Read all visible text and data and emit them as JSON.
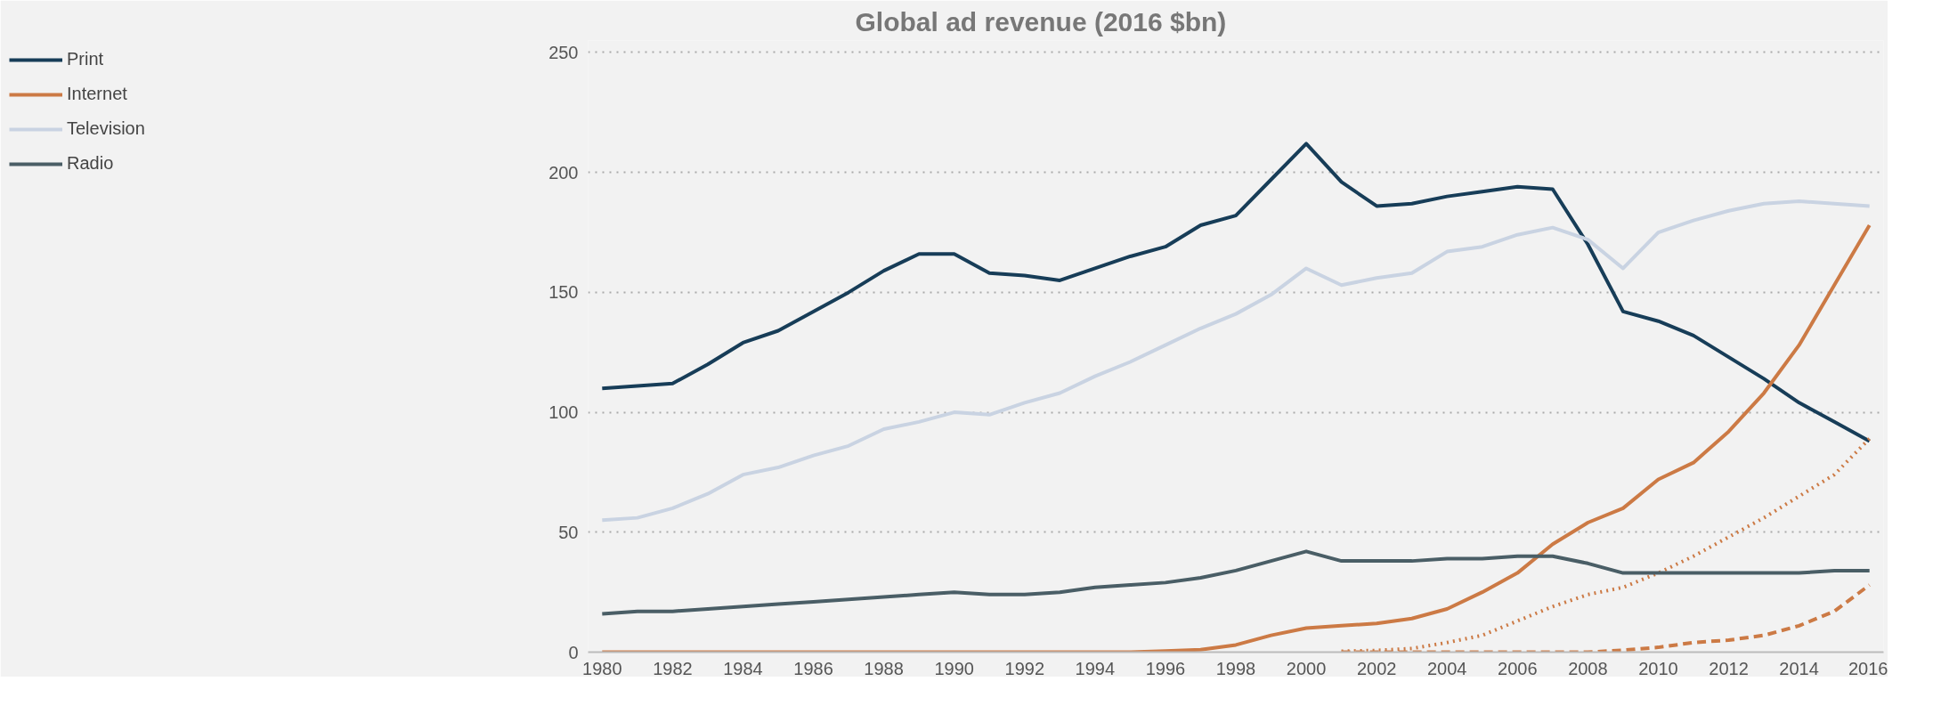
{
  "chart_data": {
    "type": "line",
    "title": "Global ad revenue (2016 $bn)",
    "x": [
      1980,
      1981,
      1982,
      1983,
      1984,
      1985,
      1986,
      1987,
      1988,
      1989,
      1990,
      1991,
      1992,
      1993,
      1994,
      1995,
      1996,
      1997,
      1998,
      1999,
      2000,
      2001,
      2002,
      2003,
      2004,
      2005,
      2006,
      2007,
      2008,
      2009,
      2010,
      2011,
      2012,
      2013,
      2014,
      2015,
      2016
    ],
    "series": [
      {
        "name": "Print",
        "color": "#173d58",
        "values": [
          110,
          111,
          112,
          120,
          129,
          134,
          142,
          150,
          159,
          166,
          166,
          158,
          157,
          155,
          160,
          165,
          169,
          178,
          182,
          197,
          212,
          196,
          186,
          187,
          190,
          192,
          194,
          193,
          170,
          142,
          138,
          132,
          123,
          114,
          104,
          96,
          88
        ]
      },
      {
        "name": "Internet",
        "color": "#cc7a45",
        "values": [
          0,
          0,
          0,
          0,
          0,
          0,
          0,
          0,
          0,
          0,
          0,
          0,
          0,
          0,
          0,
          0,
          0.5,
          1,
          3,
          7,
          10,
          11,
          12,
          14,
          18,
          25,
          33,
          45,
          54,
          60,
          72,
          79,
          92,
          108,
          128,
          153,
          178
        ]
      },
      {
        "color": "#cc7a45",
        "line_style": "dotted",
        "values": [
          null,
          null,
          null,
          null,
          null,
          null,
          null,
          null,
          null,
          null,
          null,
          null,
          null,
          null,
          null,
          null,
          null,
          null,
          null,
          null,
          null,
          0.4,
          0.7,
          1.5,
          4,
          7,
          13,
          19,
          24,
          27,
          33,
          40,
          48,
          56,
          65,
          74,
          89
        ]
      },
      {
        "color": "#cc7a45",
        "line_style": "dashed",
        "values": [
          null,
          null,
          null,
          null,
          null,
          null,
          null,
          null,
          null,
          null,
          null,
          null,
          null,
          null,
          null,
          null,
          null,
          null,
          null,
          null,
          null,
          0,
          0,
          0,
          0,
          0,
          0,
          0,
          0,
          0.8,
          2,
          4,
          5,
          7,
          11,
          17,
          28
        ]
      },
      {
        "name": "Television",
        "color": "#c9d3e2",
        "values": [
          55,
          56,
          60,
          66,
          74,
          77,
          82,
          86,
          93,
          96,
          100,
          99,
          104,
          108,
          115,
          121,
          128,
          135,
          141,
          149,
          160,
          153,
          156,
          158,
          167,
          169,
          174,
          177,
          172,
          160,
          175,
          180,
          184,
          187,
          188,
          187,
          186
        ]
      },
      {
        "name": "Radio",
        "color": "#4a5e66",
        "values": [
          16,
          17,
          17,
          18,
          19,
          20,
          21,
          22,
          23,
          24,
          25,
          24,
          24,
          25,
          27,
          28,
          29,
          31,
          34,
          38,
          42,
          38,
          38,
          38,
          39,
          39,
          40,
          40,
          37,
          33,
          33,
          33,
          33,
          33,
          33,
          34,
          34
        ]
      }
    ],
    "xlim": [
      1979.6,
      2016.4
    ],
    "xticks": [
      1980,
      1982,
      1984,
      1986,
      1988,
      1990,
      1992,
      1994,
      1996,
      1998,
      2000,
      2002,
      2004,
      2006,
      2008,
      2010,
      2012,
      2014,
      2016
    ],
    "ylim": [
      0,
      255
    ],
    "yticks": [
      0,
      50,
      100,
      150,
      200,
      250
    ],
    "grid": "y",
    "legend": "left",
    "line_style": "solid",
    "marker": "none"
  }
}
